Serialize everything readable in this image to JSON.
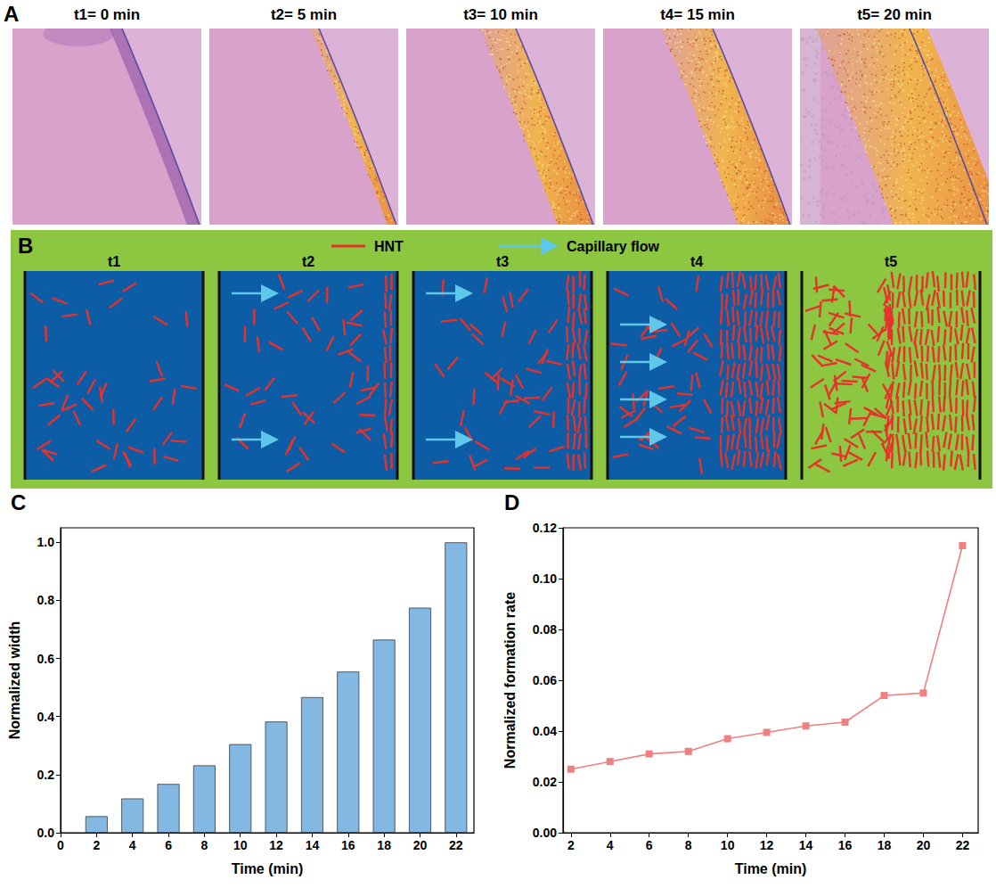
{
  "figure": {
    "letters": [
      "A",
      "B",
      "C",
      "D"
    ],
    "A": {
      "images": [
        {
          "title": "t1= 0 min"
        },
        {
          "title": "t2= 5 min"
        },
        {
          "title": "t3= 10 min"
        },
        {
          "title": "t4= 15 min"
        },
        {
          "title": "t5= 20 min"
        }
      ]
    },
    "B": {
      "legend": {
        "hnt": "HNT",
        "flow": "Capillary flow"
      },
      "stages": [
        "t1",
        "t2",
        "t3",
        "t4",
        "t5"
      ]
    }
  },
  "chart_data": [
    {
      "type": "bar",
      "x": [
        2,
        4,
        6,
        8,
        10,
        12,
        14,
        16,
        18,
        20,
        22
      ],
      "values": [
        0.057,
        0.118,
        0.168,
        0.232,
        0.305,
        0.383,
        0.467,
        0.555,
        0.665,
        0.775,
        1.0
      ],
      "color": "#82b8e2",
      "x_label": "Time (min)",
      "y_label": "Normalized width",
      "xlim": [
        0,
        23
      ],
      "xticks": [
        0,
        2,
        4,
        6,
        8,
        10,
        12,
        14,
        16,
        18,
        20,
        22
      ],
      "ylim": [
        0,
        1.05
      ],
      "yticks": [
        {
          "value": 0,
          "label": "0.0"
        },
        0.2,
        0.4,
        0.6,
        0.8,
        {
          "value": 1,
          "label": "1.0"
        }
      ],
      "grid": false
    },
    {
      "type": "line",
      "x": [
        2,
        4,
        6,
        8,
        10,
        12,
        14,
        16,
        18,
        20,
        22
      ],
      "values": [
        0.025,
        0.028,
        0.031,
        0.032,
        0.037,
        0.0395,
        0.042,
        0.0435,
        0.054,
        0.055,
        0.113
      ],
      "color": "#f07f7f",
      "marker": "square",
      "line_style": "solid",
      "x_label": "Time (min)",
      "y_label": "Normalized formation rate",
      "xlim": [
        1.6,
        22.8
      ],
      "xticks": [
        2,
        4,
        6,
        8,
        10,
        12,
        14,
        16,
        18,
        20,
        22
      ],
      "ylim": [
        0,
        0.12
      ],
      "yticks": [
        {
          "value": 0,
          "label": "0.00"
        },
        0.02,
        0.04,
        0.06,
        0.08,
        {
          "value": 0.1,
          "label": "0.10"
        },
        0.12
      ],
      "grid": false
    }
  ]
}
